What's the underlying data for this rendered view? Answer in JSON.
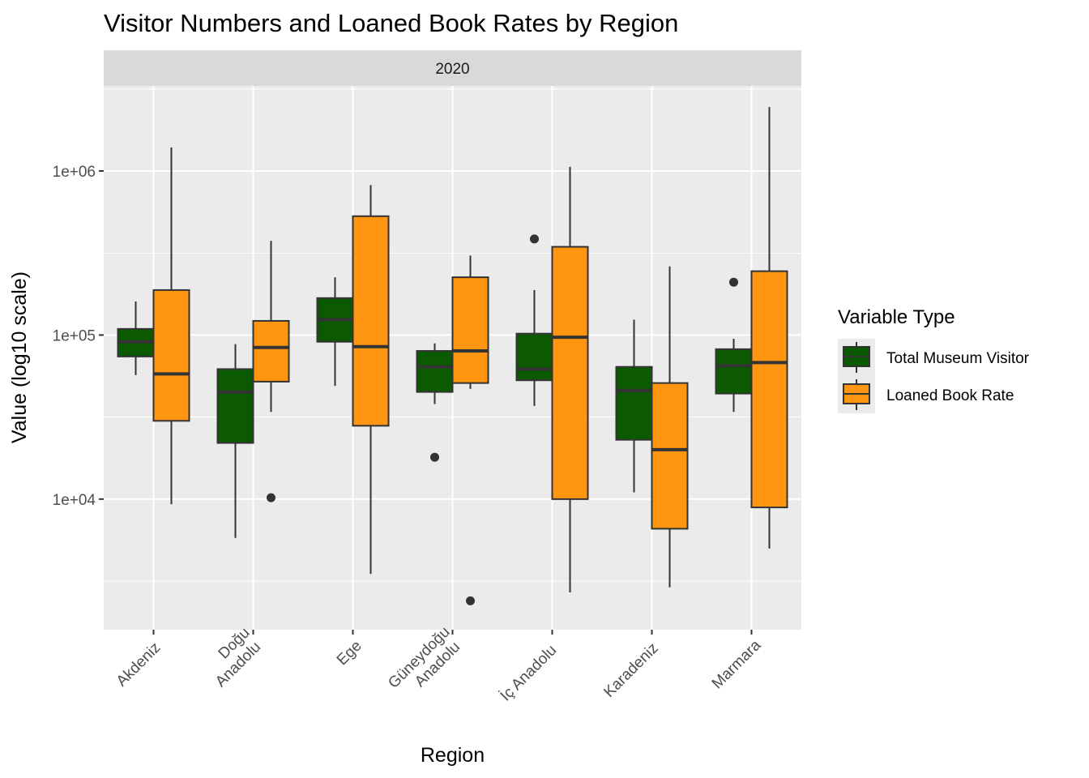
{
  "chart_data": {
    "type": "box",
    "title": "Visitor Numbers and Loaned Book Rates by Region",
    "facet": "2020",
    "xlabel": "Region",
    "ylabel": "Value (log10 scale)",
    "y_scale": "log10",
    "ylim": [
      1600,
      3300000
    ],
    "y_ticks": [
      {
        "value": 10000,
        "label": "1e+04"
      },
      {
        "value": 100000,
        "label": "1e+05"
      },
      {
        "value": 1000000,
        "label": "1e+06"
      }
    ],
    "categories": [
      [
        "Akdeniz"
      ],
      [
        "Doğu",
        "Anadolu"
      ],
      [
        "Ege"
      ],
      [
        "Güneydoğu",
        "Anadolu"
      ],
      [
        "İç Anadolu"
      ],
      [
        "Karadeniz"
      ],
      [
        "Marmara"
      ]
    ],
    "legend": {
      "title": "Variable Type",
      "position": "right"
    },
    "grid": true,
    "series": [
      {
        "name": "Total Museum Visitor",
        "color": "#0B5A00",
        "boxes": [
          {
            "min": 57000,
            "q1": 74000,
            "median": 91000,
            "q3": 109000,
            "max": 160000,
            "outliers": []
          },
          {
            "min": 5800,
            "q1": 22000,
            "median": 45000,
            "q3": 62000,
            "max": 88000,
            "outliers": []
          },
          {
            "min": 49000,
            "q1": 91000,
            "median": 124000,
            "q3": 168000,
            "max": 225000,
            "outliers": []
          },
          {
            "min": 38000,
            "q1": 45000,
            "median": 64000,
            "q3": 80000,
            "max": 89000,
            "outliers": [
              18000
            ]
          },
          {
            "min": 37000,
            "q1": 53000,
            "median": 62000,
            "q3": 102000,
            "max": 188000,
            "outliers": [
              385000
            ]
          },
          {
            "min": 11000,
            "q1": 23000,
            "median": 46000,
            "q3": 64000,
            "max": 124000,
            "outliers": []
          },
          {
            "min": 34000,
            "q1": 44000,
            "median": 65000,
            "q3": 82000,
            "max": 95000,
            "outliers": [
              210000
            ]
          }
        ]
      },
      {
        "name": "Loaned Book Rate",
        "color": "#FF9510",
        "boxes": [
          {
            "min": 9300,
            "q1": 30000,
            "median": 58000,
            "q3": 188000,
            "max": 1390000,
            "outliers": []
          },
          {
            "min": 34000,
            "q1": 52000,
            "median": 84000,
            "q3": 122000,
            "max": 375000,
            "outliers": [
              10200
            ]
          },
          {
            "min": 3500,
            "q1": 28000,
            "median": 85000,
            "q3": 530000,
            "max": 820000,
            "outliers": []
          },
          {
            "min": 47000,
            "q1": 51000,
            "median": 80000,
            "q3": 225000,
            "max": 305000,
            "outliers": [
              2400
            ]
          },
          {
            "min": 2700,
            "q1": 10000,
            "median": 97000,
            "q3": 345000,
            "max": 1060000,
            "outliers": []
          },
          {
            "min": 2900,
            "q1": 6600,
            "median": 20000,
            "q3": 51000,
            "max": 262000,
            "outliers": []
          },
          {
            "min": 5000,
            "q1": 8900,
            "median": 68000,
            "q3": 245000,
            "max": 2450000,
            "outliers": []
          }
        ]
      }
    ]
  }
}
